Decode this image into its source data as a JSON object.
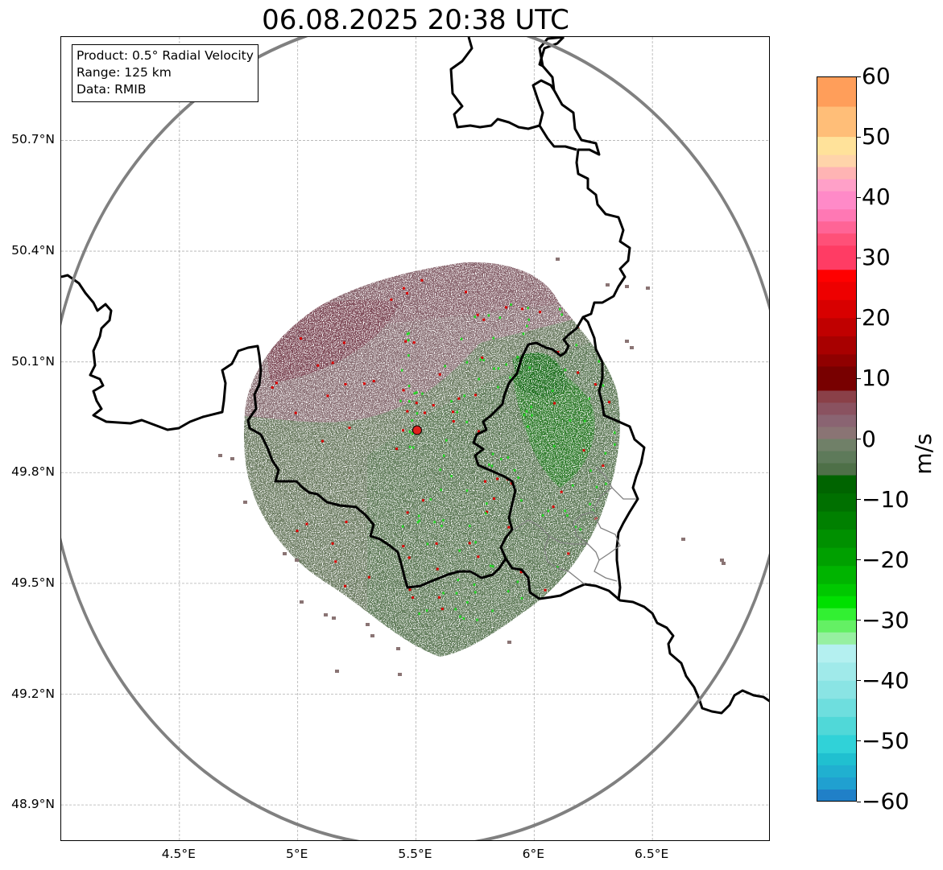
{
  "title": "06.08.2025 20:38 UTC",
  "info": {
    "product": "Product: 0.5° Radial Velocity",
    "range": "Range: 125 km",
    "source": "Data: RMIB"
  },
  "map": {
    "lon_range": [
      4.0,
      7.0
    ],
    "lat_range": [
      48.8,
      50.98
    ],
    "radar_site": {
      "lon": 5.505,
      "lat": 49.915
    },
    "range_ring_km": 125,
    "lat_ticks": [
      {
        "value": 50.7,
        "label": "50.7°N"
      },
      {
        "value": 50.4,
        "label": "50.4°N"
      },
      {
        "value": 50.1,
        "label": "50.1°N"
      },
      {
        "value": 49.8,
        "label": "49.8°N"
      },
      {
        "value": 49.5,
        "label": "49.5°N"
      },
      {
        "value": 49.2,
        "label": "49.2°N"
      },
      {
        "value": 48.9,
        "label": "48.9°N"
      }
    ],
    "lon_ticks": [
      {
        "value": 4.5,
        "label": "4.5°E"
      },
      {
        "value": 5.0,
        "label": "5°E"
      },
      {
        "value": 5.5,
        "label": "5.5°E"
      },
      {
        "value": 6.0,
        "label": "6°E"
      },
      {
        "value": 6.5,
        "label": "6.5°E"
      }
    ],
    "colors": {
      "ring": "#808080",
      "border": "#000000",
      "minor_border": "#808080",
      "grid": "#b0b0b0",
      "site_marker": "#e0201e"
    }
  },
  "colorbar": {
    "unit": "m/s",
    "min": -60,
    "max": 60,
    "ticks": [
      {
        "value": 60,
        "label": "60"
      },
      {
        "value": 50,
        "label": "50"
      },
      {
        "value": 40,
        "label": "40"
      },
      {
        "value": 30,
        "label": "30"
      },
      {
        "value": 20,
        "label": "20"
      },
      {
        "value": 10,
        "label": "10"
      },
      {
        "value": 0,
        "label": "0"
      },
      {
        "value": -10,
        "label": "−10"
      },
      {
        "value": -20,
        "label": "−20"
      },
      {
        "value": -30,
        "label": "−30"
      },
      {
        "value": -40,
        "label": "−40"
      },
      {
        "value": -50,
        "label": "−50"
      },
      {
        "value": -60,
        "label": "−60"
      }
    ],
    "bands": [
      {
        "from": 55,
        "to": 60,
        "color": "#ff9e5a"
      },
      {
        "from": 50,
        "to": 55,
        "color": "#ffbe78"
      },
      {
        "from": 47,
        "to": 50,
        "color": "#ffe29a"
      },
      {
        "from": 45,
        "to": 47,
        "color": "#ffd4aa"
      },
      {
        "from": 43,
        "to": 45,
        "color": "#ffb4b4"
      },
      {
        "from": 41,
        "to": 43,
        "color": "#ffa0c8"
      },
      {
        "from": 38,
        "to": 41,
        "color": "#ff8ac8"
      },
      {
        "from": 36,
        "to": 38,
        "color": "#ff78b4"
      },
      {
        "from": 34,
        "to": 36,
        "color": "#ff6496"
      },
      {
        "from": 32,
        "to": 34,
        "color": "#ff5078"
      },
      {
        "from": 28,
        "to": 32,
        "color": "#ff3c64"
      },
      {
        "from": 26,
        "to": 28,
        "color": "#ff0000"
      },
      {
        "from": 23,
        "to": 26,
        "color": "#ee0000"
      },
      {
        "from": 20,
        "to": 23,
        "color": "#d80000"
      },
      {
        "from": 17,
        "to": 20,
        "color": "#c00000"
      },
      {
        "from": 14,
        "to": 17,
        "color": "#a80000"
      },
      {
        "from": 12,
        "to": 14,
        "color": "#900000"
      },
      {
        "from": 8,
        "to": 12,
        "color": "#780000"
      },
      {
        "from": 6,
        "to": 8,
        "color": "#8a4048"
      },
      {
        "from": 4,
        "to": 6,
        "color": "#8a5260"
      },
      {
        "from": 2,
        "to": 4,
        "color": "#8a6472"
      },
      {
        "from": 0,
        "to": 2,
        "color": "#8a7474"
      },
      {
        "from": -2,
        "to": 0,
        "color": "#708068"
      },
      {
        "from": -4,
        "to": -2,
        "color": "#5e7a5a"
      },
      {
        "from": -6,
        "to": -4,
        "color": "#4e7048"
      },
      {
        "from": -9,
        "to": -6,
        "color": "#006400"
      },
      {
        "from": -12,
        "to": -9,
        "color": "#007000"
      },
      {
        "from": -15,
        "to": -12,
        "color": "#008000"
      },
      {
        "from": -18,
        "to": -15,
        "color": "#009000"
      },
      {
        "from": -21,
        "to": -18,
        "color": "#00a000"
      },
      {
        "from": -24,
        "to": -21,
        "color": "#00b400"
      },
      {
        "from": -26,
        "to": -24,
        "color": "#00c800"
      },
      {
        "from": -28,
        "to": -26,
        "color": "#00e000"
      },
      {
        "from": -30,
        "to": -28,
        "color": "#32f032"
      },
      {
        "from": -32,
        "to": -30,
        "color": "#64f064"
      },
      {
        "from": -34,
        "to": -32,
        "color": "#96f0a0"
      },
      {
        "from": -37,
        "to": -34,
        "color": "#b4f0f0"
      },
      {
        "from": -40,
        "to": -37,
        "color": "#a0eaea"
      },
      {
        "from": -43,
        "to": -40,
        "color": "#8ae4e4"
      },
      {
        "from": -46,
        "to": -43,
        "color": "#6edede"
      },
      {
        "from": -49,
        "to": -46,
        "color": "#50d8d8"
      },
      {
        "from": -52,
        "to": -49,
        "color": "#30d2d8"
      },
      {
        "from": -54,
        "to": -52,
        "color": "#20c0d0"
      },
      {
        "from": -56,
        "to": -54,
        "color": "#20b0d0"
      },
      {
        "from": -58,
        "to": -56,
        "color": "#20a0d0"
      },
      {
        "from": -60,
        "to": -58,
        "color": "#2080c8"
      }
    ]
  }
}
